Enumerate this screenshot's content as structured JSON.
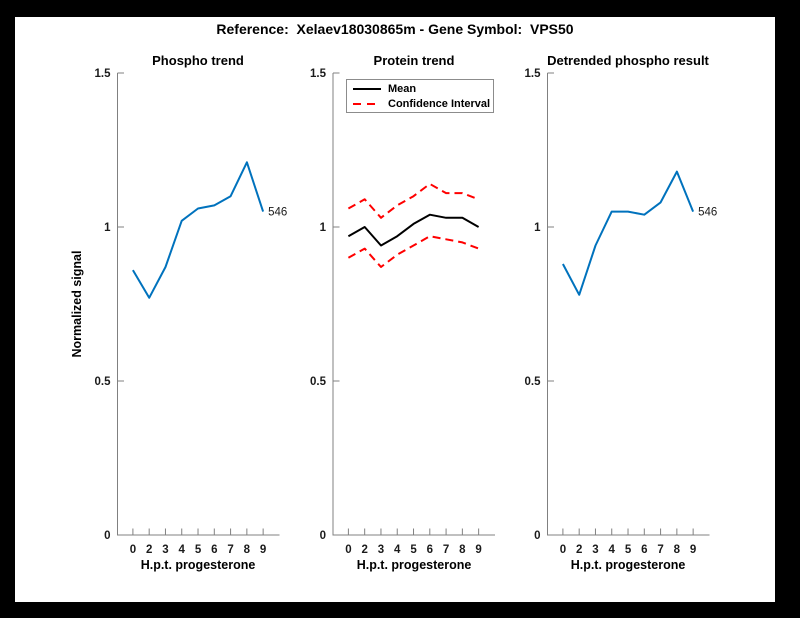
{
  "figure": {
    "title": "Reference:  Xelaev18030865m - Gene Symbol:  VPS50",
    "reference": "Xelaev18030865m",
    "gene_symbol": "VPS50",
    "frame_color": "#000000",
    "canvas_color": "#FFFFFF"
  },
  "colors": {
    "line_blue": "#0072BD",
    "line_red": "#FF0000",
    "line_black": "#000000",
    "axis_line": "#808080",
    "text": "#1A1A1A"
  },
  "axes": {
    "xlabel": "H.p.t. progesterone",
    "ylabel": "Normalized signal",
    "xticklabels": [
      "0",
      "2",
      "3",
      "4",
      "5",
      "6",
      "7",
      "8",
      "9"
    ],
    "yticklabels": [
      "1.5",
      "1",
      "0.5",
      "0"
    ],
    "ytick_values": [
      1.5,
      1,
      0.5,
      0
    ],
    "ylim": [
      0,
      1.5
    ],
    "grid": "off"
  },
  "chart_data": [
    {
      "type": "line",
      "title": "Phospho trend",
      "xlabel": "H.p.t. progesterone",
      "ylabel": "Normalized signal",
      "x_ticklabels": [
        "0",
        "2",
        "3",
        "4",
        "5",
        "6",
        "7",
        "8",
        "9"
      ],
      "ylim": [
        0,
        1.5
      ],
      "end_label": "546",
      "series": [
        {
          "name": "phospho-trend",
          "color": "#0072BD",
          "style": "solid",
          "values": [
            0.86,
            0.77,
            0.87,
            1.02,
            1.06,
            1.07,
            1.1,
            1.21,
            1.05
          ]
        }
      ]
    },
    {
      "type": "line",
      "title": "Protein trend",
      "xlabel": "H.p.t. progesterone",
      "x_ticklabels": [
        "0",
        "2",
        "3",
        "4",
        "5",
        "6",
        "7",
        "8",
        "9"
      ],
      "ylim": [
        0,
        1.5
      ],
      "legend": {
        "entries": [
          "Mean",
          "Confidence Interval"
        ],
        "position": "top-left"
      },
      "series": [
        {
          "name": "mean",
          "color": "#000000",
          "style": "solid",
          "values": [
            0.97,
            1.0,
            0.94,
            0.97,
            1.01,
            1.04,
            1.03,
            1.03,
            1.0
          ]
        },
        {
          "name": "confidence-upper",
          "color": "#FF0000",
          "style": "dashed",
          "values": [
            1.06,
            1.09,
            1.03,
            1.07,
            1.1,
            1.14,
            1.11,
            1.11,
            1.09
          ]
        },
        {
          "name": "confidence-lower",
          "color": "#FF0000",
          "style": "dashed",
          "values": [
            0.9,
            0.93,
            0.87,
            0.91,
            0.94,
            0.97,
            0.96,
            0.95,
            0.93
          ]
        }
      ]
    },
    {
      "type": "line",
      "title": "Detrended phospho result",
      "xlabel": "H.p.t. progesterone",
      "x_ticklabels": [
        "0",
        "2",
        "3",
        "4",
        "5",
        "6",
        "7",
        "8",
        "9"
      ],
      "ylim": [
        0,
        1.5
      ],
      "end_label": "546",
      "series": [
        {
          "name": "detrended-phospho",
          "color": "#0072BD",
          "style": "solid",
          "values": [
            0.88,
            0.78,
            0.94,
            1.05,
            1.05,
            1.04,
            1.08,
            1.18,
            1.05
          ]
        }
      ]
    }
  ]
}
